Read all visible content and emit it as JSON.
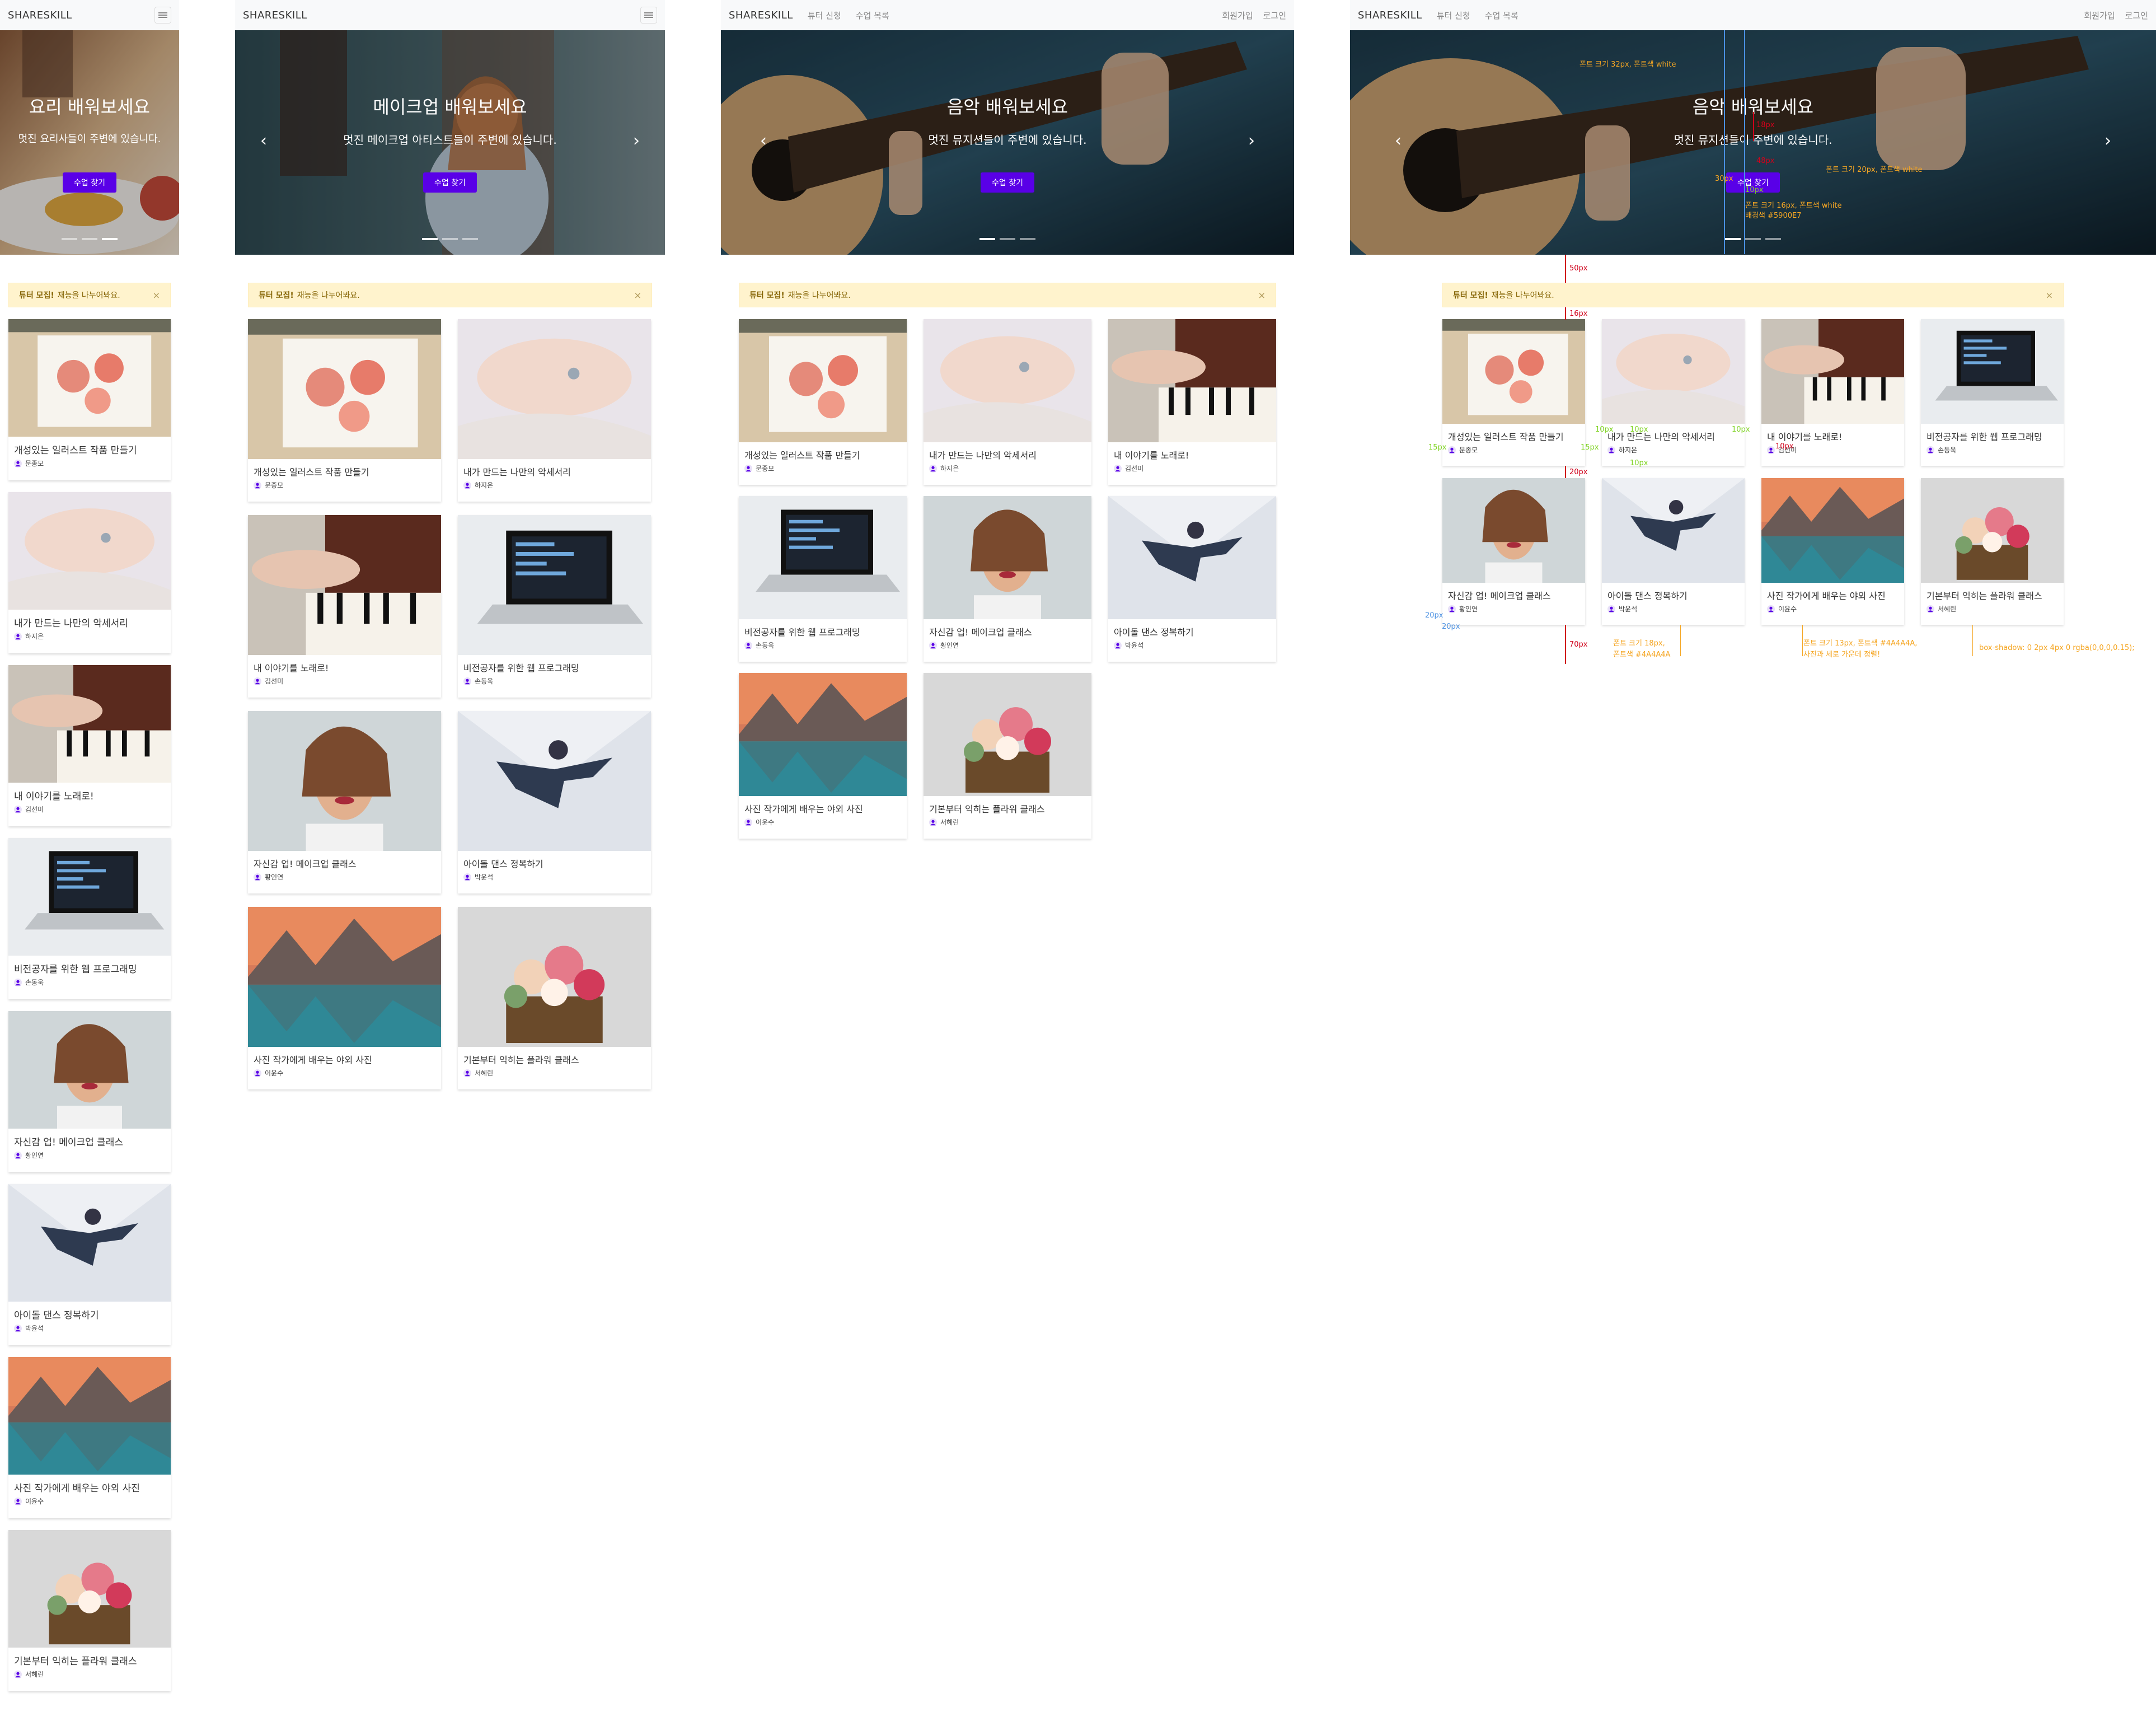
{
  "brand": "SHARESKILL",
  "nav": {
    "tutor_apply": "튜터 신청",
    "class_list": "수업 목록",
    "signup": "회원가입",
    "login": "로그인"
  },
  "heroes": [
    {
      "title": "요리 배워보세요",
      "subtitle": "멋진 요리사들이 주변에 있습니다.",
      "button": "수업 찾기"
    },
    {
      "title": "메이크업 배워보세요",
      "subtitle": "멋진 메이크업 아티스트들이 주변에 있습니다.",
      "button": "수업 찾기"
    },
    {
      "title": "음악 배워보세요",
      "subtitle": "멋진 뮤지션들이 주변에 있습니다.",
      "button": "수업 찾기"
    },
    {
      "title": "음악 배워보세요",
      "subtitle": "멋진 뮤지션들이 주변에 있습니다.",
      "button": "수업 찾기"
    }
  ],
  "alert": {
    "strong": "튜터 모집!",
    "text": "재능을 나누어봐요.",
    "close": "×"
  },
  "cards": [
    {
      "title": "개성있는 일러스트 작품 만들기",
      "author": "문종모",
      "image": "flower-illustration"
    },
    {
      "title": "내가 만드는 나만의 악세서리",
      "author": "하지은",
      "image": "hand-rings"
    },
    {
      "title": "내 이야기를 노래로!",
      "author": "김선미",
      "image": "piano"
    },
    {
      "title": "비전공자를 위한 웹 프로그래밍",
      "author": "손동욱",
      "image": "laptop-code"
    },
    {
      "title": "자신감 업! 메이크업 클래스",
      "author": "황인연",
      "image": "makeup-portrait"
    },
    {
      "title": "아이돌 댄스 정복하기",
      "author": "박윤석",
      "image": "dancer-jump"
    },
    {
      "title": "사진 작가에게 배우는 야외 사진",
      "author": "이윤수",
      "image": "mountain-lake"
    },
    {
      "title": "기본부터 익히는 플라워 클래스",
      "author": "서혜린",
      "image": "flower-basket"
    }
  ],
  "annotations": {
    "font32": "폰트 크기 32px, 폰트색 white",
    "h18": "18px",
    "h48": "48px",
    "font20": "폰트 크기 20px, 폰트색 white",
    "pad30": "30px",
    "pad10": "10px",
    "btn1": "폰트 크기 16px, 폰트색 white",
    "btn2": "배경색 #5900E7",
    "gap50": "50px",
    "gap16": "16px",
    "gap10a": "10px",
    "gap10b": "10px",
    "gap10c": "10px",
    "gap10d": "10px",
    "gap10e": "10px",
    "gap15a": "15px",
    "gap15b": "15px",
    "gap20": "20px",
    "gap20b": "20px",
    "gap20c": "20px",
    "gap70": "70px",
    "title1": "폰트 크기 18px,",
    "title2": "폰트색 #4A4A4A",
    "author1": "폰트 크기 13px, 폰트색 #4A4A4A,",
    "author2": "사진과 세로 가운데 정렬!",
    "shadow": "box-shadow: 0 2px 4px 0 rgba(0,0,0,0.15);"
  }
}
